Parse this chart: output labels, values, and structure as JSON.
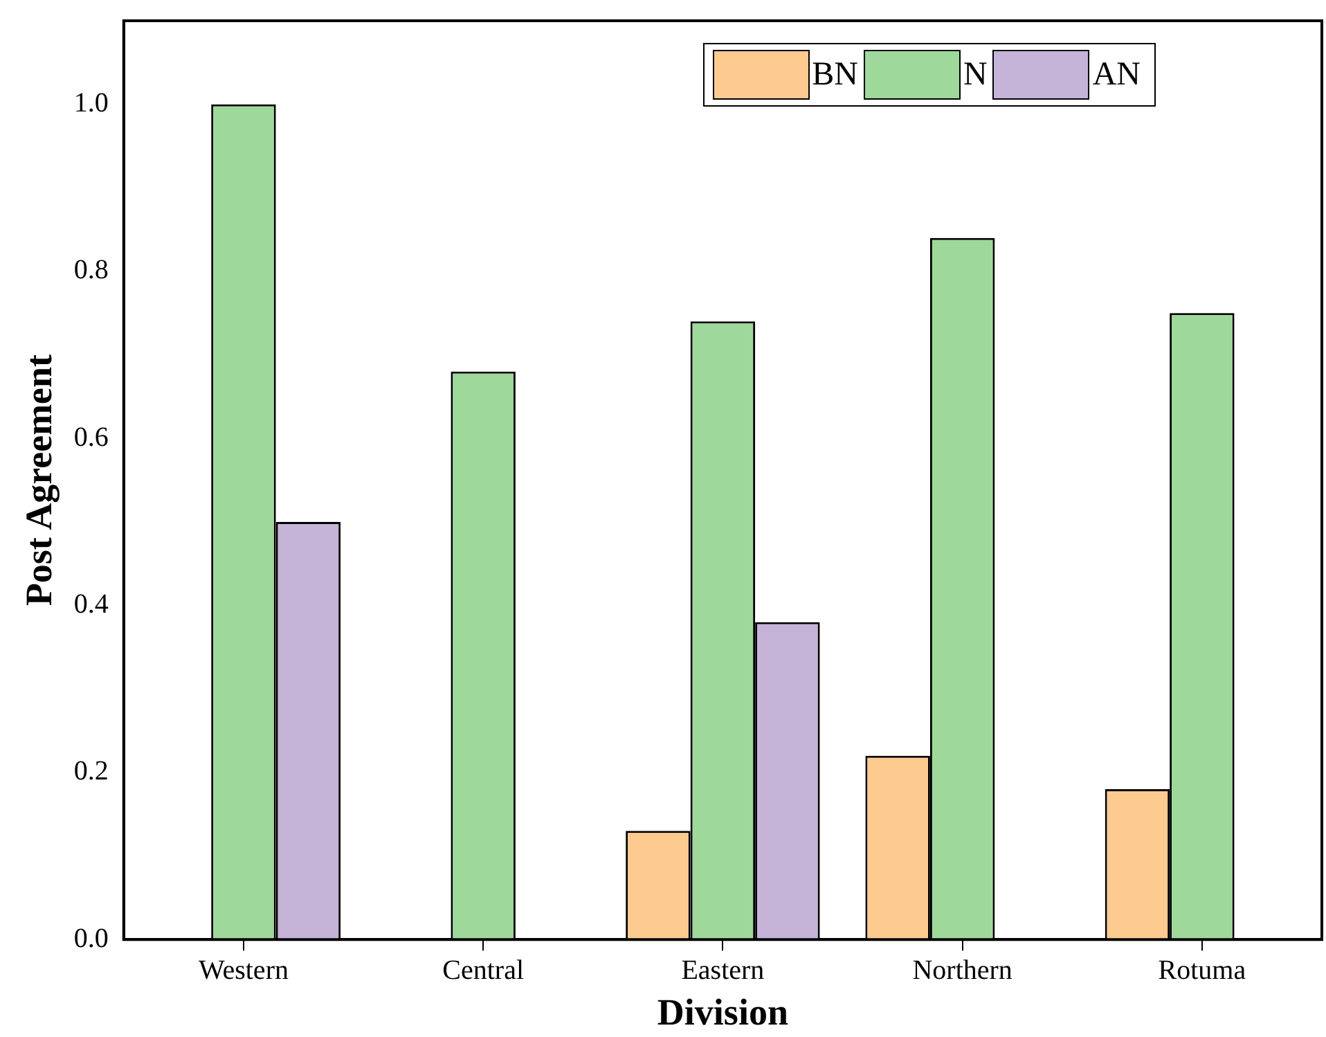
{
  "chart_data": {
    "type": "bar",
    "xlabel": "Division",
    "ylabel": "Post Agreement",
    "categories": [
      "Western",
      "Central",
      "Eastern",
      "Northern",
      "Rotuma"
    ],
    "series": [
      {
        "name": "BN",
        "color": "#fdca8f",
        "values": [
          0,
          0,
          0.13,
          0.22,
          0.18
        ]
      },
      {
        "name": "N",
        "color": "#9ed89a",
        "values": [
          1.0,
          0.68,
          0.74,
          0.84,
          0.75
        ]
      },
      {
        "name": "AN",
        "color": "#c5b3d8",
        "values": [
          0.5,
          0,
          0.38,
          0,
          0
        ]
      }
    ],
    "ylim": [
      0,
      1.1
    ],
    "yticks": [
      {
        "value": 0,
        "label": "0.0"
      },
      0.2,
      0.4,
      0.6,
      0.8,
      {
        "value": 1,
        "label": "1.0"
      }
    ],
    "grid": false,
    "legend": "top right"
  }
}
